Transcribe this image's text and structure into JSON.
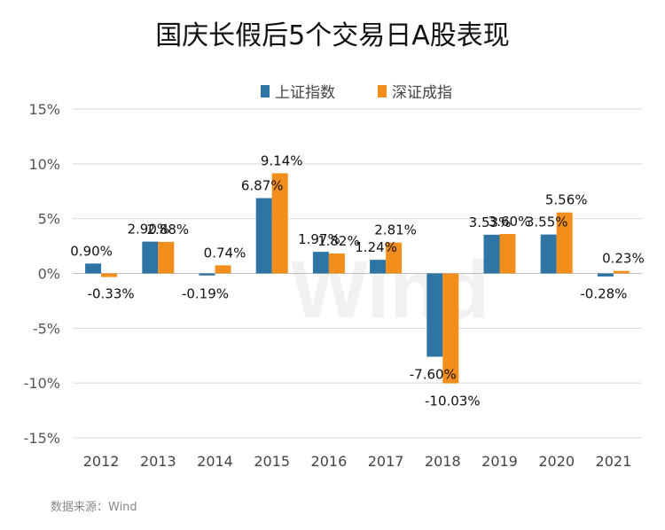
{
  "title": "国庆长假后5个交易日A股表现",
  "source": "数据来源：Wind",
  "watermark": "Wind",
  "colors": {
    "series1": "#2e75a6",
    "series2": "#f28e1c",
    "grid": "#d9d9d9",
    "zero": "#bfbfbf"
  },
  "chart_data": {
    "type": "bar",
    "title": "国庆长假后5个交易日A股表现",
    "categories": [
      "2012",
      "2013",
      "2014",
      "2015",
      "2016",
      "2017",
      "2018",
      "2019",
      "2020",
      "2021"
    ],
    "series": [
      {
        "name": "上证指数",
        "values": [
          0.9,
          2.9,
          -0.19,
          6.87,
          1.97,
          1.24,
          -7.6,
          3.53,
          3.55,
          -0.28
        ]
      },
      {
        "name": "深证成指",
        "values": [
          -0.33,
          2.88,
          0.74,
          9.14,
          1.82,
          2.81,
          -10.03,
          3.6,
          5.56,
          0.23
        ]
      }
    ],
    "ylim": [
      -15,
      15
    ],
    "yticks": [
      15,
      10,
      5,
      0,
      -5,
      -10,
      -15
    ],
    "ytick_labels": [
      "15%",
      "10%",
      "5%",
      "0%",
      "-5%",
      "-10%",
      "-15%"
    ],
    "value_suffix": "%",
    "legend_position": "top",
    "grid": true
  }
}
